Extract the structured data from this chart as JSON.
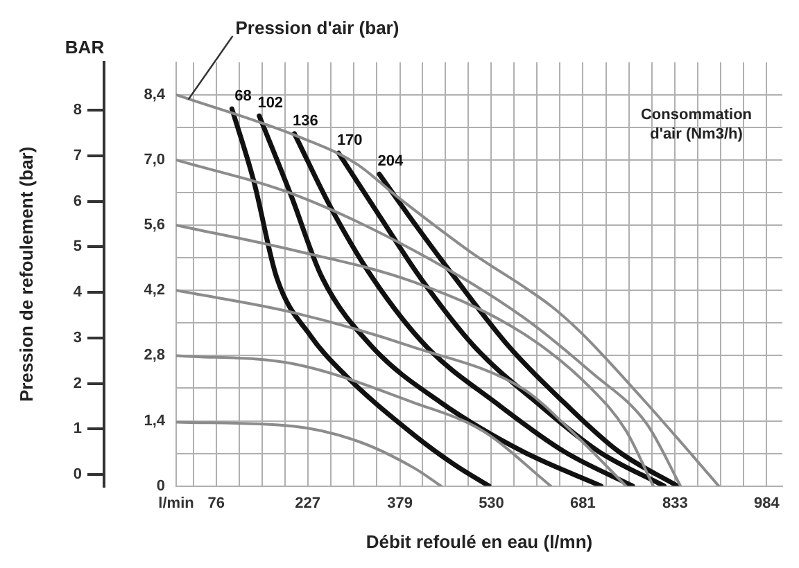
{
  "chart_data": {
    "type": "line",
    "xlabel": "Débit refoulé en eau (l/mn)",
    "ylabel": "Pression de refoulement (bar)",
    "annotations": [
      {
        "text": "Pression d'air (bar)",
        "x": 30,
        "y": 8.3
      },
      "BAR",
      "Consommation d'air (Nm3/h)"
    ],
    "xlim": [
      10,
      1010
    ],
    "xticks": [
      {
        "value": 10,
        "label": "l/min"
      },
      {
        "value": 38.25,
        "label": null
      },
      76,
      {
        "value": 113.75,
        "label": null
      },
      {
        "value": 151.5,
        "label": null
      },
      {
        "value": 189.25,
        "label": null
      },
      227,
      {
        "value": 265,
        "label": null
      },
      {
        "value": 303,
        "label": null
      },
      {
        "value": 341,
        "label": null
      },
      379,
      {
        "value": 416.75,
        "label": null
      },
      {
        "value": 454.5,
        "label": null
      },
      {
        "value": 492.25,
        "label": null
      },
      530,
      {
        "value": 567.75,
        "label": null
      },
      {
        "value": 605.5,
        "label": null
      },
      {
        "value": 643.25,
        "label": null
      },
      681,
      {
        "value": 719,
        "label": null
      },
      {
        "value": 757,
        "label": null
      },
      {
        "value": 795,
        "label": null
      },
      833,
      {
        "value": 870.75,
        "label": null
      },
      {
        "value": 908.5,
        "label": null
      },
      {
        "value": 946.25,
        "label": null
      },
      984
    ],
    "ylim": [
      -0.25,
      9.05
    ],
    "yticks": [
      0,
      1,
      2,
      3,
      4,
      5,
      6,
      7,
      8
    ],
    "y2lim": [
      0,
      9.1
    ],
    "y2ticks": [
      0,
      {
        "value": 0.7,
        "label": null
      },
      {
        "value": 1.4,
        "label": "1,4"
      },
      {
        "value": 2.1,
        "label": null
      },
      {
        "value": 2.8,
        "label": "2,8"
      },
      {
        "value": 3.5,
        "label": null
      },
      {
        "value": 4.2,
        "label": "4,2"
      },
      {
        "value": 4.9,
        "label": null
      },
      {
        "value": 5.6,
        "label": "5,6"
      },
      {
        "value": 6.3,
        "label": null
      },
      {
        "value": 7,
        "label": "7,0"
      },
      {
        "value": 7.7,
        "label": null
      },
      {
        "value": 8.4,
        "label": "8,4"
      }
    ],
    "grid": true,
    "legend": false,
    "marker": "none",
    "line_style": "solid",
    "series": [
      {
        "axis": "y2",
        "color": "#8c8c8c",
        "x": [
          11,
          205,
          305,
          379,
          492,
          628,
          679,
          779,
          846,
          905
        ],
        "values": [
          8.4,
          7.54,
          6.94,
          6.17,
          5.06,
          3.87,
          3.28,
          1.88,
          0.89,
          0
        ]
      },
      {
        "axis": "y2",
        "color": "#8c8c8c",
        "x": [
          11,
          205,
          402,
          582,
          695,
          786,
          842
        ],
        "values": [
          7.0,
          6.26,
          5.06,
          3.63,
          2.44,
          1.34,
          0
        ]
      },
      {
        "axis": "y2",
        "color": "#8c8c8c",
        "x": [
          11,
          205,
          402,
          582,
          695,
          752,
          797
        ],
        "values": [
          5.6,
          5.06,
          4.38,
          3.28,
          2.09,
          1.19,
          0
        ]
      },
      {
        "axis": "y2",
        "color": "#8c8c8c",
        "x": [
          11,
          205,
          402,
          582,
          673,
          752
        ],
        "values": [
          4.2,
          3.72,
          2.98,
          2.09,
          1.04,
          0
        ]
      },
      {
        "axis": "y2",
        "color": "#8c8c8c",
        "x": [
          11,
          205,
          402,
          515,
          628
        ],
        "values": [
          2.8,
          2.62,
          1.79,
          1.19,
          0
        ]
      },
      {
        "axis": "y2",
        "color": "#8c8c8c",
        "x": [
          11,
          205,
          312,
          402,
          447
        ],
        "values": [
          1.37,
          1.28,
          0.95,
          0.39,
          0
        ]
      },
      {
        "name": "68",
        "axis": "y2",
        "color": "#111111",
        "x": [
          102,
          138,
          176,
          232,
          289,
          402,
          470,
          526
        ],
        "values": [
          8.1,
          6.55,
          4.47,
          3.22,
          2.38,
          1.1,
          0.45,
          0
        ]
      },
      {
        "name": "102",
        "axis": "y2",
        "color": "#111111",
        "x": [
          147,
          199,
          251,
          334,
          447,
          582,
          711
        ],
        "values": [
          7.95,
          6.26,
          4.47,
          2.98,
          1.79,
          0.74,
          0
        ]
      },
      {
        "name": "136",
        "axis": "y2",
        "color": "#111111",
        "x": [
          205,
          266,
          334,
          424,
          537,
          650,
          763
        ],
        "values": [
          7.57,
          5.96,
          4.47,
          2.98,
          1.79,
          0.74,
          0
        ]
      },
      {
        "name": "170",
        "axis": "y2",
        "color": "#111111",
        "x": [
          278,
          345,
          413,
          503,
          605,
          707,
          815
        ],
        "values": [
          7.15,
          5.81,
          4.47,
          2.98,
          1.79,
          0.74,
          0
        ]
      },
      {
        "name": "204",
        "axis": "y2",
        "color": "#111111",
        "x": [
          345,
          402,
          470,
          560,
          650,
          740,
          837
        ],
        "values": [
          6.7,
          5.66,
          4.47,
          2.98,
          1.79,
          0.74,
          0
        ]
      }
    ]
  }
}
